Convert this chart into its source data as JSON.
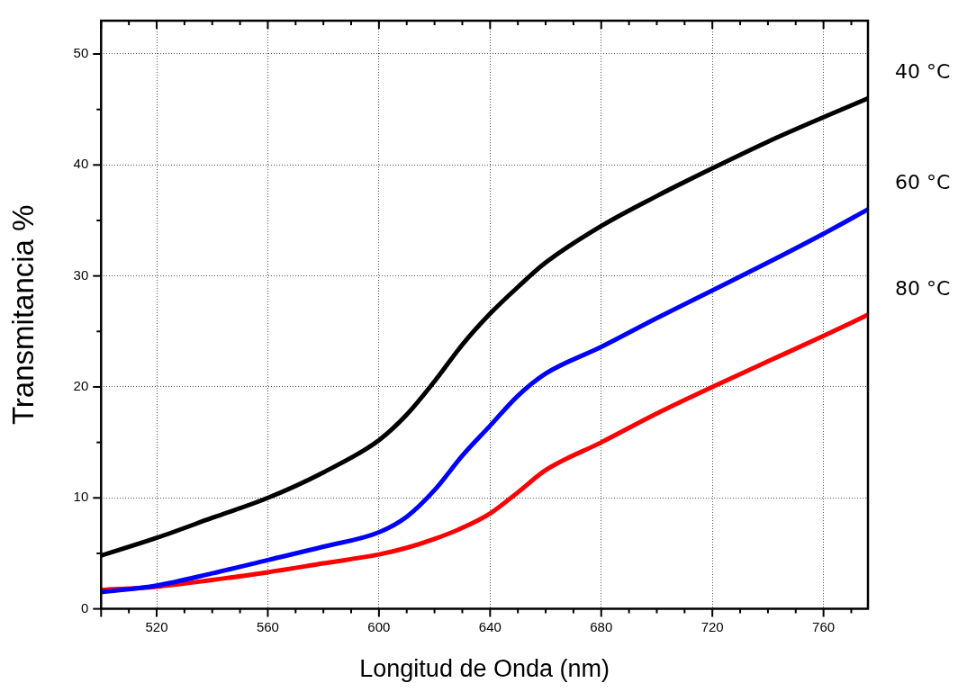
{
  "chart_data": {
    "type": "line",
    "xlabel": "Longitud de Onda (nm)",
    "ylabel": "Transmitancia %",
    "x": [
      500,
      520,
      540,
      560,
      580,
      600,
      610,
      620,
      630,
      640,
      650,
      660,
      680,
      700,
      720,
      740,
      760,
      776
    ],
    "series": [
      {
        "name": "40 °C",
        "color": "#000000",
        "values": [
          4.8,
          6.4,
          8.2,
          10.0,
          12.3,
          15.2,
          17.5,
          20.5,
          23.8,
          26.6,
          29.0,
          31.2,
          34.5,
          37.2,
          39.7,
          42.1,
          44.3,
          46.0
        ]
      },
      {
        "name": "60 °C",
        "color": "#0000ff",
        "values": [
          1.5,
          2.1,
          3.2,
          4.4,
          5.6,
          6.9,
          8.3,
          10.7,
          13.8,
          16.5,
          19.2,
          21.2,
          23.6,
          26.2,
          28.7,
          31.2,
          33.8,
          36.0
        ]
      },
      {
        "name": "80 °C",
        "color": "#ff0000",
        "values": [
          1.7,
          2.0,
          2.6,
          3.3,
          4.1,
          4.9,
          5.5,
          6.3,
          7.3,
          8.6,
          10.5,
          12.5,
          15.0,
          17.6,
          20.0,
          22.3,
          24.6,
          26.5
        ]
      }
    ],
    "xlim": [
      500,
      776
    ],
    "xticks": [
      {
        "value": 500,
        "label": null
      },
      520,
      560,
      600,
      640,
      680,
      720,
      760
    ],
    "ylim": [
      0,
      53
    ],
    "yticks": [
      0,
      10,
      20,
      30,
      40,
      50
    ],
    "grid": true,
    "marker": "none",
    "line_style": "solid",
    "legend": false
  }
}
